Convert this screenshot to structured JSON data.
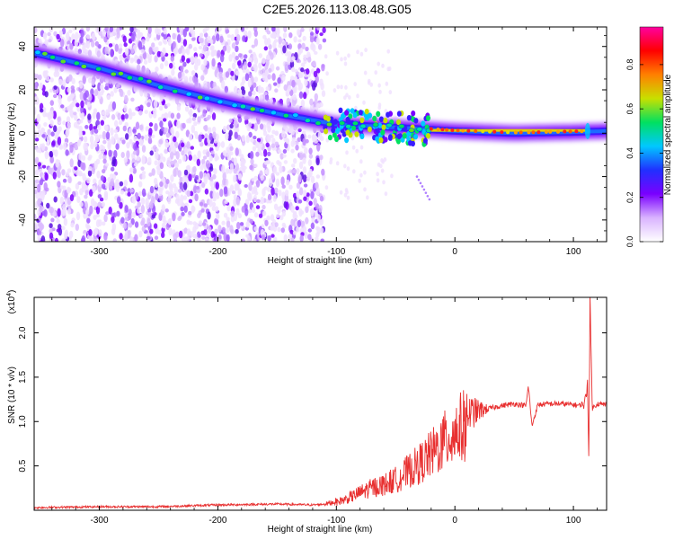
{
  "title": "C2E5.2026.113.08.48.G05",
  "chart_data": [
    {
      "type": "heatmap",
      "xlabel": "Height of straight line (km)",
      "ylabel": "Frequency (Hz)",
      "xlim": [
        -355,
        128
      ],
      "ylim": [
        -50,
        49
      ],
      "xticks": [
        -300,
        -200,
        -100,
        0,
        100
      ],
      "xtick_labels": [
        "-300",
        "-200",
        "-100",
        "0",
        "100"
      ],
      "yticks": [
        -40,
        -20,
        0,
        20,
        40
      ],
      "ytick_labels": [
        "-40",
        "-20",
        "0",
        "20",
        "40"
      ],
      "colorbar": {
        "label": "Normalized spectral amplitude",
        "range": [
          0.0,
          0.97
        ],
        "ticks": [
          0.0,
          0.2,
          0.4,
          0.6,
          0.8
        ],
        "tick_labels": [
          "0.0",
          "0.2",
          "0.4",
          "0.6",
          "0.8"
        ],
        "colormap": [
          "#ffffff",
          "#d9b3ff",
          "#7a00ff",
          "#2030ff",
          "#00c8ff",
          "#00e060",
          "#c8e000",
          "#ff8000",
          "#ff0000",
          "#ff00a0"
        ]
      },
      "ridge": {
        "x": [
          -355,
          -300,
          -250,
          -200,
          -150,
          -120,
          -100,
          -60,
          -30,
          0,
          50,
          100,
          128
        ],
        "y": [
          37,
          30,
          22,
          15,
          9,
          6,
          4,
          3,
          2,
          1,
          0,
          0.5,
          1
        ]
      },
      "scatter_x_range": [
        -355,
        -110
      ],
      "grid": false
    },
    {
      "type": "line",
      "xlabel": "Height of straight line (km)",
      "ylabel": "SNR (10 * v/v)",
      "yscale_label": "(x10",
      "yscale_exponent": "4",
      "xlim": [
        -355,
        128
      ],
      "ylim": [
        0,
        2.4
      ],
      "xticks": [
        -300,
        -200,
        -100,
        0,
        100
      ],
      "xtick_labels": [
        "-300",
        "-200",
        "-100",
        "0",
        "100"
      ],
      "yticks": [
        0.5,
        1.0,
        1.5,
        2.0
      ],
      "ytick_labels": [
        "0.5",
        "1.0",
        "1.5",
        "2.0"
      ],
      "color": "#e83030",
      "series": [
        {
          "x": [
            -355,
            -300,
            -250,
            -200,
            -150,
            -120,
            -110,
            -100,
            -90,
            -80,
            -70,
            -60,
            -50,
            -40,
            -30,
            -20,
            -10,
            0,
            10,
            20,
            30,
            40,
            50,
            60,
            62,
            65,
            70,
            80,
            90,
            100,
            105,
            110,
            112,
            113,
            114,
            116,
            120,
            128
          ],
          "y": [
            0.03,
            0.04,
            0.04,
            0.06,
            0.07,
            0.06,
            0.07,
            0.1,
            0.15,
            0.22,
            0.28,
            0.32,
            0.38,
            0.48,
            0.58,
            0.7,
            0.85,
            0.98,
            1.08,
            1.12,
            1.15,
            1.18,
            1.2,
            1.18,
            1.4,
            0.95,
            1.19,
            1.2,
            1.2,
            1.19,
            1.18,
            1.22,
            1.45,
            0.55,
            2.35,
            1.15,
            1.2,
            1.19
          ]
        }
      ]
    }
  ]
}
